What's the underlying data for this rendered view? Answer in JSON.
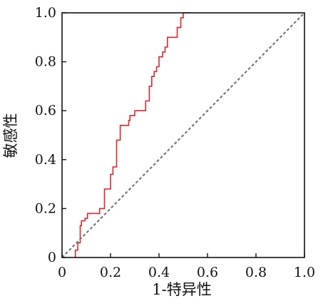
{
  "chart_data": {
    "type": "line",
    "xlabel": "1-特异性",
    "ylabel": "敏感性",
    "xlim": [
      0,
      1.0
    ],
    "ylim": [
      0,
      1.0
    ],
    "grid": false,
    "x_ticks": [
      "0",
      "0.2",
      "0.4",
      "0.6",
      "0.8",
      "1.0"
    ],
    "y_ticks": [
      "0",
      "0.2",
      "0.4",
      "0.6",
      "0.8",
      "1.0"
    ],
    "series": [
      {
        "kind": "roc-step",
        "color": "#e0252b",
        "points": [
          [
            0.055,
            0.0
          ],
          [
            0.055,
            0.03
          ],
          [
            0.065,
            0.03
          ],
          [
            0.065,
            0.06
          ],
          [
            0.075,
            0.06
          ],
          [
            0.075,
            0.13
          ],
          [
            0.08,
            0.13
          ],
          [
            0.08,
            0.15
          ],
          [
            0.095,
            0.15
          ],
          [
            0.095,
            0.16
          ],
          [
            0.105,
            0.16
          ],
          [
            0.105,
            0.18
          ],
          [
            0.155,
            0.18
          ],
          [
            0.155,
            0.2
          ],
          [
            0.175,
            0.2
          ],
          [
            0.175,
            0.28
          ],
          [
            0.2,
            0.28
          ],
          [
            0.2,
            0.34
          ],
          [
            0.21,
            0.34
          ],
          [
            0.21,
            0.37
          ],
          [
            0.225,
            0.37
          ],
          [
            0.225,
            0.48
          ],
          [
            0.24,
            0.48
          ],
          [
            0.24,
            0.54
          ],
          [
            0.275,
            0.54
          ],
          [
            0.275,
            0.56
          ],
          [
            0.28,
            0.56
          ],
          [
            0.28,
            0.58
          ],
          [
            0.3,
            0.58
          ],
          [
            0.3,
            0.6
          ],
          [
            0.345,
            0.6
          ],
          [
            0.345,
            0.64
          ],
          [
            0.36,
            0.64
          ],
          [
            0.36,
            0.7
          ],
          [
            0.37,
            0.7
          ],
          [
            0.37,
            0.74
          ],
          [
            0.38,
            0.74
          ],
          [
            0.38,
            0.76
          ],
          [
            0.39,
            0.76
          ],
          [
            0.39,
            0.78
          ],
          [
            0.4,
            0.78
          ],
          [
            0.4,
            0.82
          ],
          [
            0.415,
            0.82
          ],
          [
            0.415,
            0.84
          ],
          [
            0.425,
            0.84
          ],
          [
            0.425,
            0.86
          ],
          [
            0.435,
            0.86
          ],
          [
            0.435,
            0.9
          ],
          [
            0.475,
            0.9
          ],
          [
            0.475,
            0.94
          ],
          [
            0.49,
            0.94
          ],
          [
            0.49,
            0.98
          ],
          [
            0.5,
            0.98
          ],
          [
            0.5,
            1.0
          ],
          [
            0.53,
            1.0
          ]
        ]
      },
      {
        "kind": "reference-diagonal",
        "color": "#7a7a7a",
        "points": [
          [
            0,
            0
          ],
          [
            1.0,
            1.0
          ]
        ]
      }
    ]
  }
}
